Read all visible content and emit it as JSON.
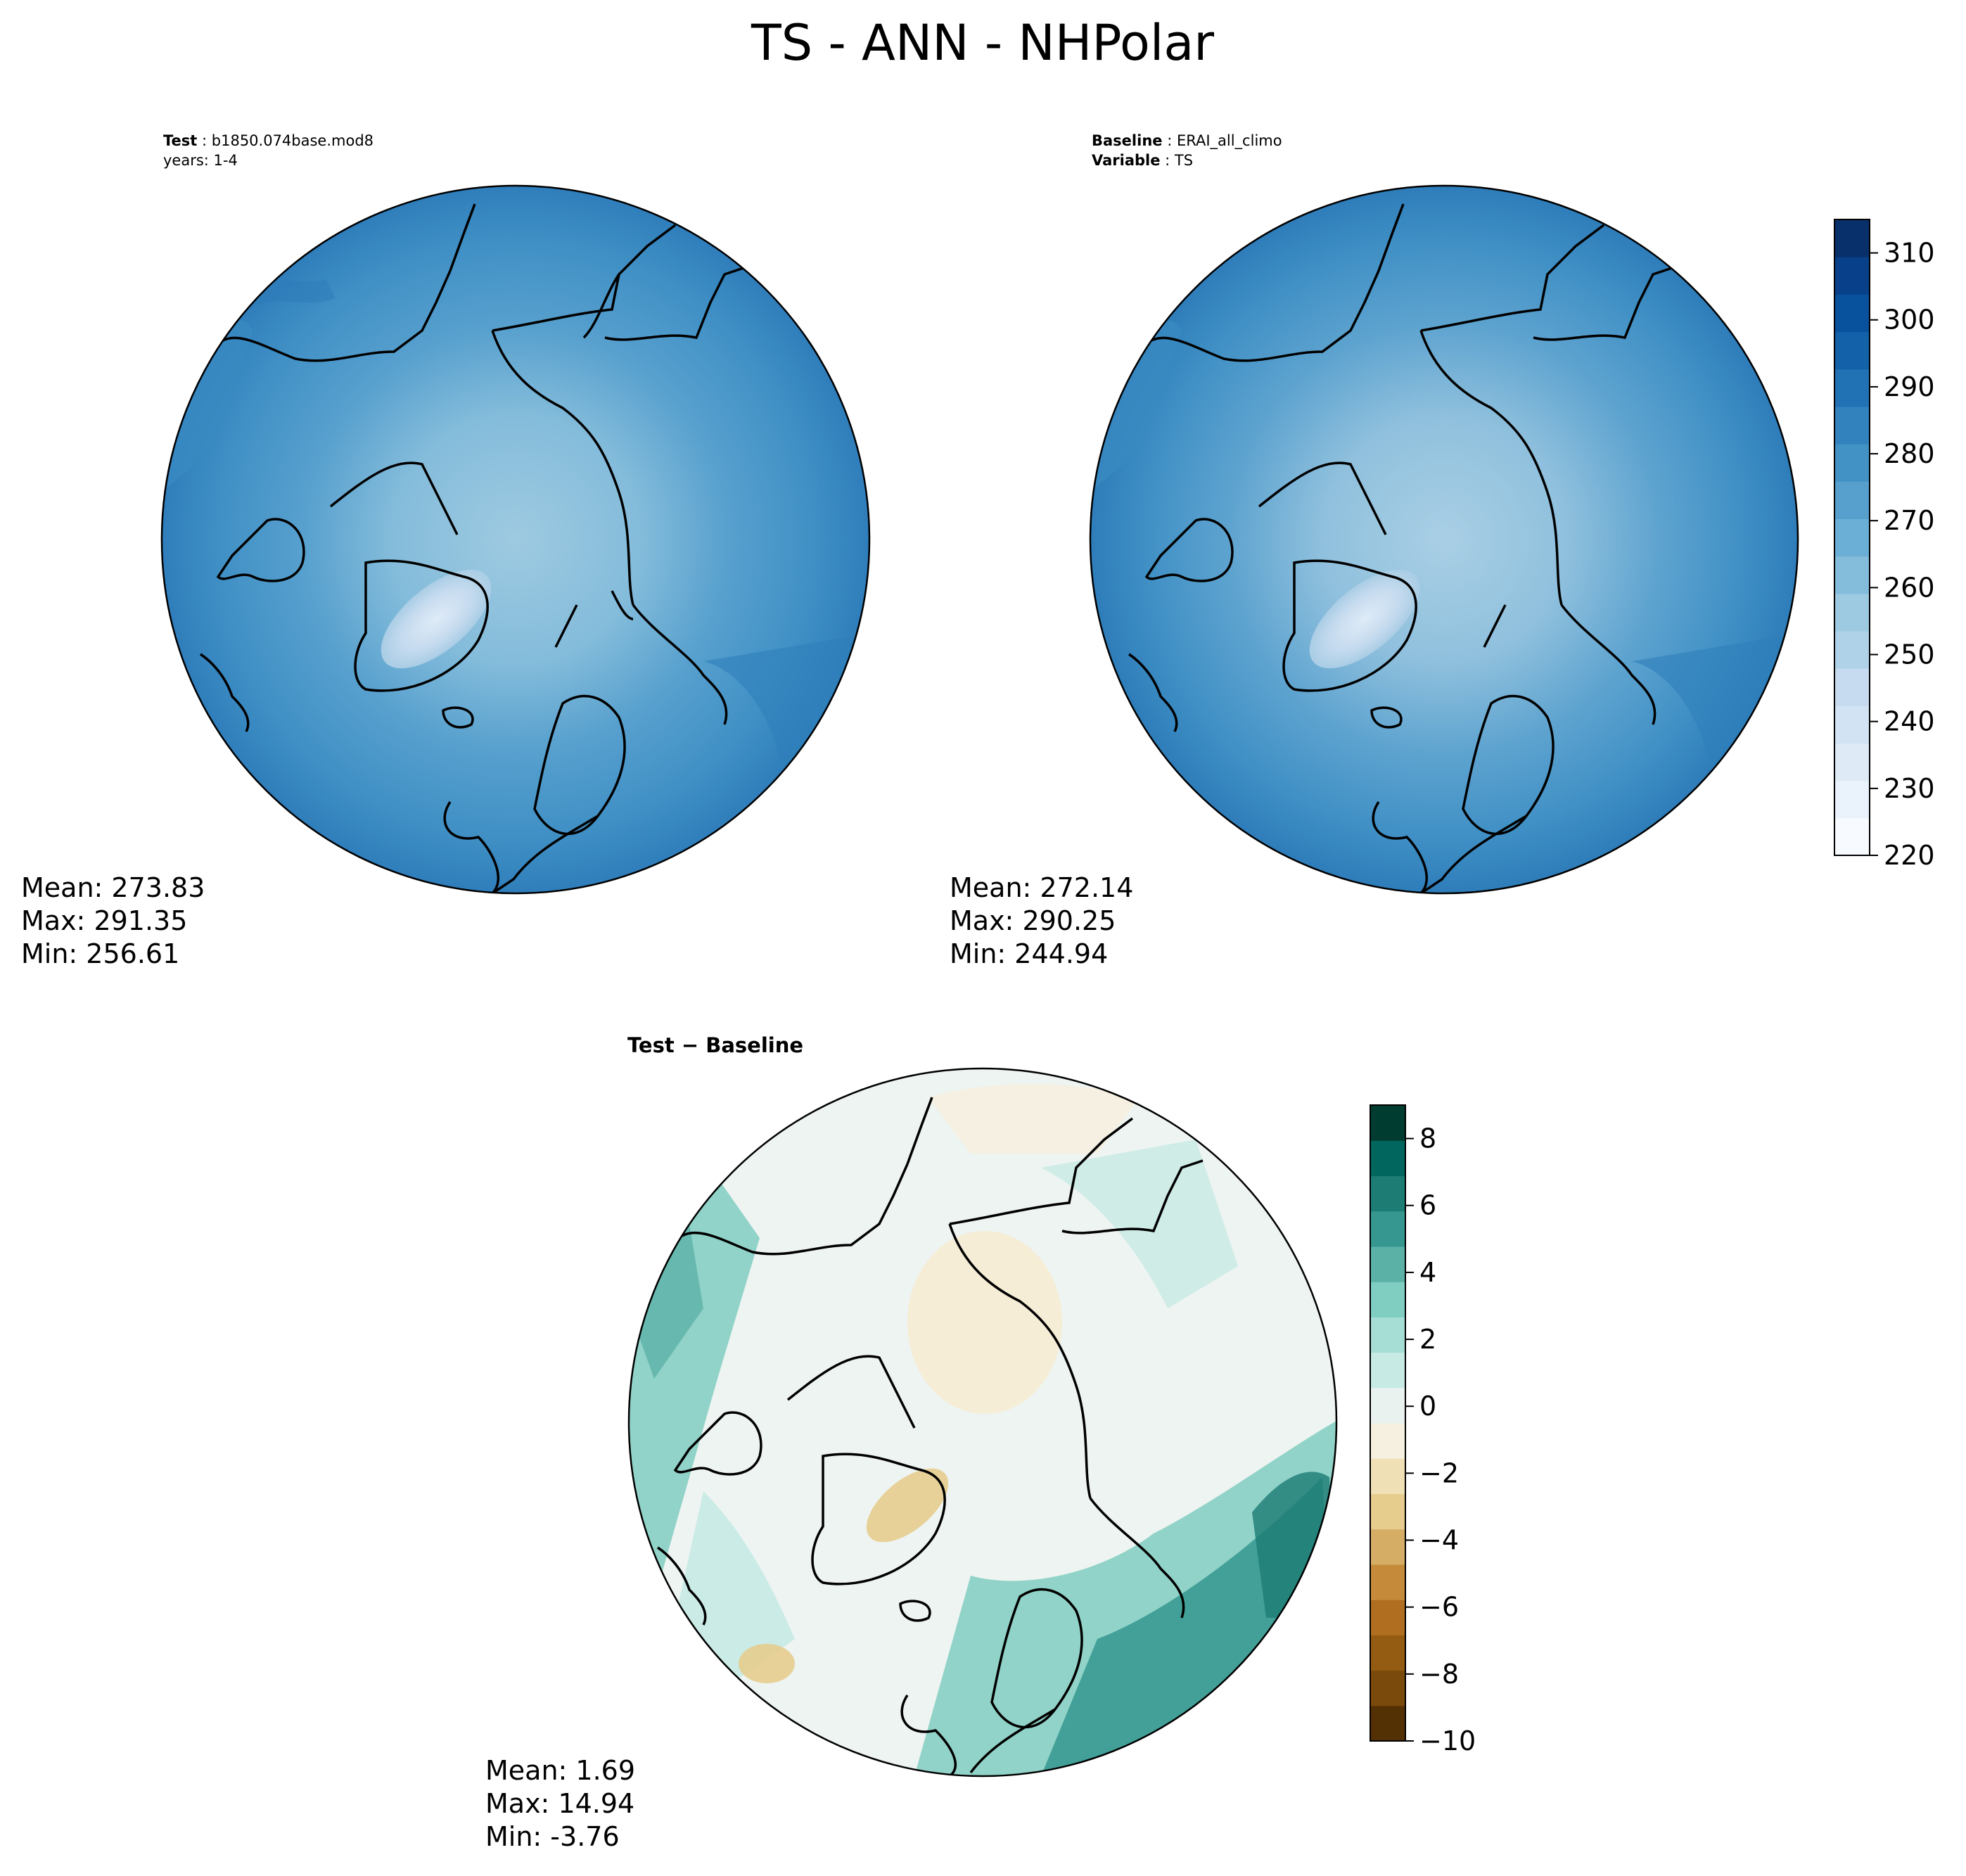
{
  "title": "TS - ANN - NHPolar",
  "panels": {
    "test": {
      "label_key": "Test",
      "label_value": "b1850.074base.mod8",
      "line2": "years: 1-4",
      "mean": "Mean: 273.83",
      "max": "Max: 291.35",
      "min": "Min: 256.61"
    },
    "baseline": {
      "label_key": "Baseline",
      "label_value": "ERAI_all_climo",
      "var_key": "Variable",
      "var_value": "TS",
      "mean": "Mean: 272.14",
      "max": "Max: 290.25",
      "min": "Min: 244.94"
    },
    "diff": {
      "title_a": "Test",
      "title_b": "Baseline",
      "mean": "Mean:  1.69",
      "max": "Max: 14.94",
      "min": "Min: -3.76"
    }
  },
  "colorbar_main": {
    "colormap": "Blues",
    "range": [
      220,
      315
    ],
    "ticks": [
      "310",
      "300",
      "290",
      "280",
      "270",
      "260",
      "250",
      "240",
      "230",
      "220"
    ],
    "colors": [
      "#f7fbff",
      "#eaf3fb",
      "#deebf7",
      "#d2e3f3",
      "#c6dbef",
      "#b0d2e8",
      "#9ecae1",
      "#84bcdb",
      "#6baed6",
      "#57a0ce",
      "#4292c6",
      "#3282be",
      "#2171b5",
      "#1361a8",
      "#08519c",
      "#08418a",
      "#08306b"
    ]
  },
  "colorbar_diff": {
    "colormap": "BrBG",
    "range": [
      -10,
      9
    ],
    "ticks": [
      "8",
      "6",
      "4",
      "2",
      "0",
      "−2",
      "−4",
      "−6",
      "−8",
      "−10"
    ],
    "colors": [
      "#543005",
      "#7a4a0c",
      "#945b12",
      "#b06e20",
      "#c58b3b",
      "#d6ad65",
      "#e6cd8e",
      "#f0e0b5",
      "#f5f0e0",
      "#eaf2ef",
      "#c7eae5",
      "#a6ddd5",
      "#80cdc1",
      "#5cb1a7",
      "#35978f",
      "#1d7c74",
      "#01665e",
      "#003c30"
    ]
  }
}
